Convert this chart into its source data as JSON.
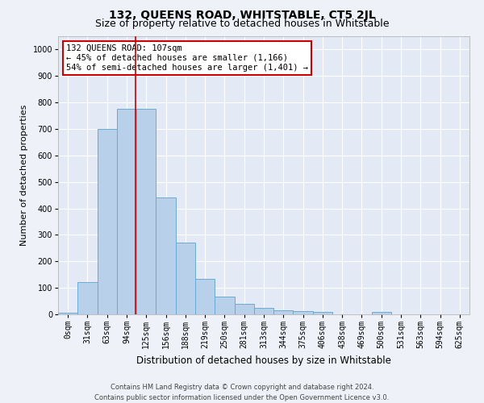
{
  "title": "132, QUEENS ROAD, WHITSTABLE, CT5 2JL",
  "subtitle": "Size of property relative to detached houses in Whitstable",
  "xlabel": "Distribution of detached houses by size in Whitstable",
  "ylabel": "Number of detached properties",
  "footer_line1": "Contains HM Land Registry data © Crown copyright and database right 2024.",
  "footer_line2": "Contains public sector information licensed under the Open Government Licence v3.0.",
  "bins": [
    "0sqm",
    "31sqm",
    "63sqm",
    "94sqm",
    "125sqm",
    "156sqm",
    "188sqm",
    "219sqm",
    "250sqm",
    "281sqm",
    "313sqm",
    "344sqm",
    "375sqm",
    "406sqm",
    "438sqm",
    "469sqm",
    "500sqm",
    "531sqm",
    "563sqm",
    "594sqm",
    "625sqm"
  ],
  "values": [
    7,
    122,
    700,
    775,
    775,
    440,
    272,
    133,
    68,
    40,
    25,
    14,
    12,
    10,
    0,
    0,
    10,
    0,
    0,
    0,
    0
  ],
  "bar_color": "#b8d0ea",
  "bar_edge_color": "#6aaad4",
  "vline_x_index": 3.45,
  "vline_color": "#cc0000",
  "annotation_text": "132 QUEENS ROAD: 107sqm\n← 45% of detached houses are smaller (1,166)\n54% of semi-detached houses are larger (1,401) →",
  "annotation_box_color": "#ffffff",
  "annotation_box_edge": "#cc0000",
  "ylim": [
    0,
    1050
  ],
  "yticks": [
    0,
    100,
    200,
    300,
    400,
    500,
    600,
    700,
    800,
    900,
    1000
  ],
  "bg_color": "#eef2f8",
  "plot_bg_color": "#e4eaf5",
  "grid_color": "#ffffff",
  "title_fontsize": 10,
  "subtitle_fontsize": 9,
  "xlabel_fontsize": 8.5,
  "ylabel_fontsize": 8,
  "tick_fontsize": 7,
  "annotation_fontsize": 7.5,
  "footer_fontsize": 6
}
